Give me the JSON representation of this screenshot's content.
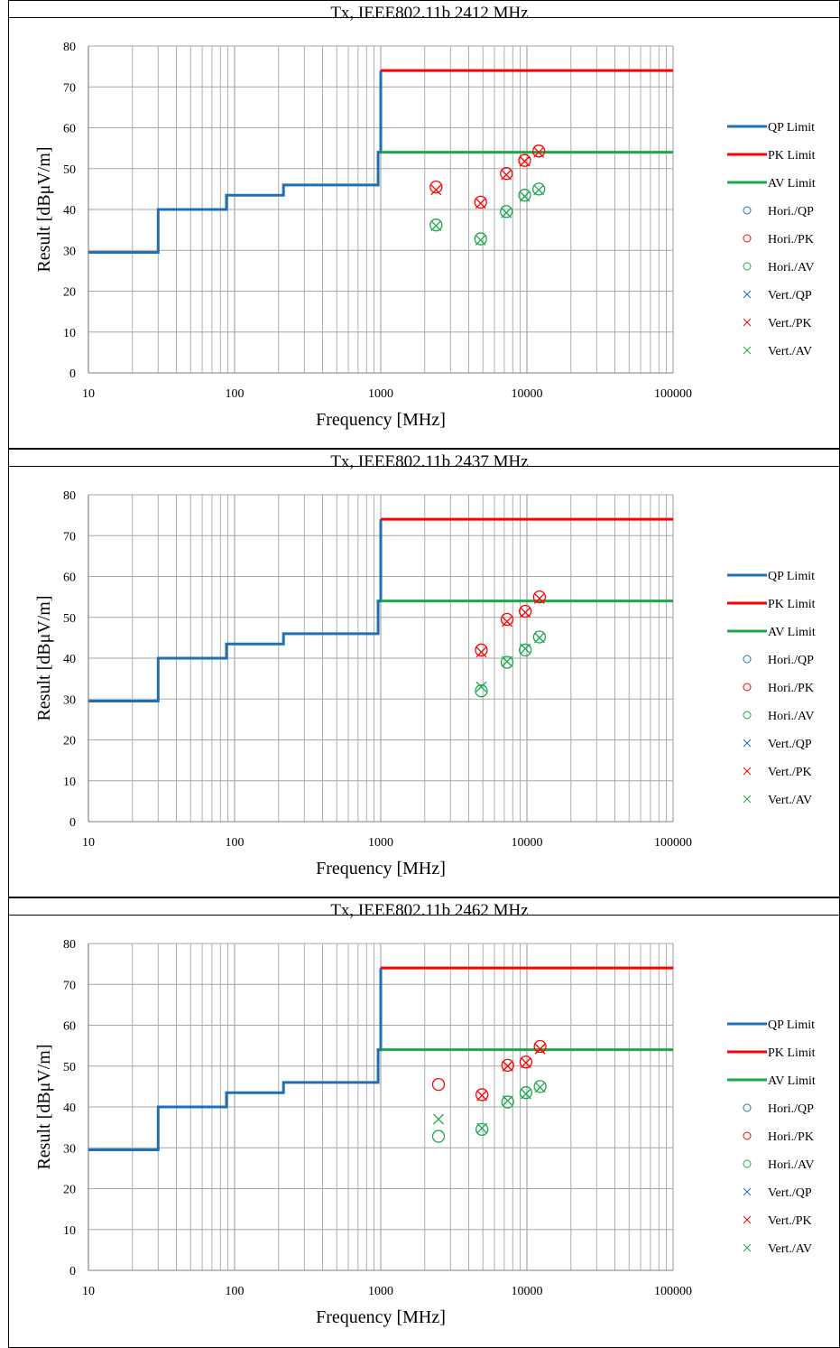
{
  "colors": {
    "qp": "#1f6fb4",
    "pk": "#ff0000",
    "av": "#1aa84a",
    "grid": "#a6a6a6",
    "frame": "#000000"
  },
  "panel_heights": [
    497,
    497,
    499
  ],
  "chart_data": [
    {
      "type": "scatter",
      "title": "Tx, IEEE802.11b 2412 MHz",
      "xlabel": "Frequency [MHz]",
      "ylabel": "Result [dBμV/m]",
      "xscale": "log",
      "xlim": [
        10,
        100000
      ],
      "ylim": [
        0,
        80
      ],
      "xticks": [
        "10",
        "100",
        "1000",
        "10000",
        "100000"
      ],
      "yticks": [
        "0",
        "10",
        "20",
        "30",
        "40",
        "50",
        "60",
        "70",
        "80"
      ],
      "grid": true,
      "legend_position": "right",
      "limit_lines": [
        {
          "name": "QP Limit",
          "color": "#1f6fb4",
          "points": [
            [
              10,
              29.5
            ],
            [
              30,
              29.5
            ],
            [
              30,
              40
            ],
            [
              88,
              40
            ],
            [
              88,
              43.5
            ],
            [
              216,
              43.5
            ],
            [
              216,
              46
            ],
            [
              960,
              46
            ],
            [
              960,
              54
            ],
            [
              1000,
              54
            ],
            [
              1000,
              74
            ]
          ]
        },
        {
          "name": "PK Limit",
          "color": "#ff0000",
          "points": [
            [
              1000,
              74
            ],
            [
              100000,
              74
            ]
          ]
        },
        {
          "name": "AV Limit",
          "color": "#1aa84a",
          "points": [
            [
              1000,
              54
            ],
            [
              100000,
              54
            ]
          ]
        }
      ],
      "series": [
        {
          "name": "Hori./QP",
          "marker": "circle",
          "color": "#1f6fb4",
          "points": []
        },
        {
          "name": "Hori./PK",
          "marker": "circle",
          "color": "#ff0000",
          "points": [
            [
              2390,
              45.5
            ],
            [
              4824,
              41.8
            ],
            [
              7236,
              48.8
            ],
            [
              9648,
              52.0
            ],
            [
              12060,
              54.3
            ]
          ]
        },
        {
          "name": "Hori./AV",
          "marker": "circle",
          "color": "#1aa84a",
          "points": [
            [
              2390,
              36.2
            ],
            [
              4824,
              32.8
            ],
            [
              7236,
              39.5
            ],
            [
              9648,
              43.5
            ],
            [
              12060,
              45.0
            ]
          ]
        },
        {
          "name": "Vert./QP",
          "marker": "x",
          "color": "#1f6fb4",
          "points": []
        },
        {
          "name": "Vert./PK",
          "marker": "x",
          "color": "#ff0000",
          "points": [
            [
              2390,
              44.8
            ],
            [
              4824,
              41.5
            ],
            [
              7236,
              48.5
            ],
            [
              9648,
              51.8
            ],
            [
              12060,
              54.0
            ]
          ]
        },
        {
          "name": "Vert./AV",
          "marker": "x",
          "color": "#1aa84a",
          "points": [
            [
              2390,
              36.0
            ],
            [
              4824,
              32.5
            ],
            [
              7236,
              39.2
            ],
            [
              9648,
              43.2
            ],
            [
              12060,
              44.8
            ]
          ]
        }
      ]
    },
    {
      "type": "scatter",
      "title": "Tx, IEEE802.11b 2437 MHz",
      "xlabel": "Frequency [MHz]",
      "ylabel": "Result [dBμV/m]",
      "xscale": "log",
      "xlim": [
        10,
        100000
      ],
      "ylim": [
        0,
        80
      ],
      "xticks": [
        "10",
        "100",
        "1000",
        "10000",
        "100000"
      ],
      "yticks": [
        "0",
        "10",
        "20",
        "30",
        "40",
        "50",
        "60",
        "70",
        "80"
      ],
      "grid": true,
      "legend_position": "right",
      "limit_lines": [
        {
          "name": "QP Limit",
          "color": "#1f6fb4",
          "points": [
            [
              10,
              29.5
            ],
            [
              30,
              29.5
            ],
            [
              30,
              40
            ],
            [
              88,
              40
            ],
            [
              88,
              43.5
            ],
            [
              216,
              43.5
            ],
            [
              216,
              46
            ],
            [
              960,
              46
            ],
            [
              960,
              54
            ],
            [
              1000,
              54
            ],
            [
              1000,
              74
            ]
          ]
        },
        {
          "name": "PK Limit",
          "color": "#ff0000",
          "points": [
            [
              1000,
              74
            ],
            [
              100000,
              74
            ]
          ]
        },
        {
          "name": "AV Limit",
          "color": "#1aa84a",
          "points": [
            [
              1000,
              54
            ],
            [
              100000,
              54
            ]
          ]
        }
      ],
      "series": [
        {
          "name": "Hori./QP",
          "marker": "circle",
          "color": "#1f6fb4",
          "points": []
        },
        {
          "name": "Hori./PK",
          "marker": "circle",
          "color": "#ff0000",
          "points": [
            [
              4874,
              42.0
            ],
            [
              7311,
              49.5
            ],
            [
              9748,
              51.5
            ],
            [
              12185,
              55.0
            ]
          ]
        },
        {
          "name": "Hori./AV",
          "marker": "circle",
          "color": "#1aa84a",
          "points": [
            [
              4874,
              32.0
            ],
            [
              7311,
              39.0
            ],
            [
              9748,
              42.0
            ],
            [
              12185,
              45.2
            ]
          ]
        },
        {
          "name": "Vert./QP",
          "marker": "x",
          "color": "#1f6fb4",
          "points": []
        },
        {
          "name": "Vert./PK",
          "marker": "x",
          "color": "#ff0000",
          "points": [
            [
              4874,
              41.5
            ],
            [
              7311,
              49.0
            ],
            [
              9748,
              51.2
            ],
            [
              12185,
              54.6
            ]
          ]
        },
        {
          "name": "Vert./AV",
          "marker": "x",
          "color": "#1aa84a",
          "points": [
            [
              4874,
              33.0
            ],
            [
              7311,
              39.2
            ],
            [
              9748,
              42.3
            ],
            [
              12185,
              45.0
            ]
          ]
        }
      ]
    },
    {
      "type": "scatter",
      "title": "Tx, IEEE802.11b 2462 MHz",
      "xlabel": "Frequency [MHz]",
      "ylabel": "Result [dBμV/m]",
      "xscale": "log",
      "xlim": [
        10,
        100000
      ],
      "ylim": [
        0,
        80
      ],
      "xticks": [
        "10",
        "100",
        "1000",
        "10000",
        "100000"
      ],
      "yticks": [
        "0",
        "10",
        "20",
        "30",
        "40",
        "50",
        "60",
        "70",
        "80"
      ],
      "grid": true,
      "legend_position": "right",
      "limit_lines": [
        {
          "name": "QP Limit",
          "color": "#1f6fb4",
          "points": [
            [
              10,
              29.5
            ],
            [
              30,
              29.5
            ],
            [
              30,
              40
            ],
            [
              88,
              40
            ],
            [
              88,
              43.5
            ],
            [
              216,
              43.5
            ],
            [
              216,
              46
            ],
            [
              960,
              46
            ],
            [
              960,
              54
            ],
            [
              1000,
              54
            ],
            [
              1000,
              74
            ]
          ]
        },
        {
          "name": "PK Limit",
          "color": "#ff0000",
          "points": [
            [
              1000,
              74
            ],
            [
              100000,
              74
            ]
          ]
        },
        {
          "name": "AV Limit",
          "color": "#1aa84a",
          "points": [
            [
              1000,
              54
            ],
            [
              100000,
              54
            ]
          ]
        }
      ],
      "series": [
        {
          "name": "Hori./QP",
          "marker": "circle",
          "color": "#1f6fb4",
          "points": []
        },
        {
          "name": "Hori./PK",
          "marker": "circle",
          "color": "#ff0000",
          "points": [
            [
              2484,
              45.5
            ],
            [
              4924,
              43.0
            ],
            [
              7386,
              50.2
            ],
            [
              9848,
              51.0
            ],
            [
              12310,
              54.8
            ]
          ]
        },
        {
          "name": "Hori./AV",
          "marker": "circle",
          "color": "#1aa84a",
          "points": [
            [
              2484,
              32.8
            ],
            [
              4924,
              34.5
            ],
            [
              7386,
              41.2
            ],
            [
              9848,
              43.5
            ],
            [
              12310,
              45.0
            ]
          ]
        },
        {
          "name": "Vert./QP",
          "marker": "x",
          "color": "#1f6fb4",
          "points": []
        },
        {
          "name": "Vert./PK",
          "marker": "x",
          "color": "#ff0000",
          "points": [
            [
              4924,
              42.8
            ],
            [
              7386,
              50.0
            ],
            [
              9848,
              50.8
            ],
            [
              12310,
              54.2
            ]
          ]
        },
        {
          "name": "Vert./AV",
          "marker": "x",
          "color": "#1aa84a",
          "points": [
            [
              2484,
              37.0
            ],
            [
              4924,
              34.8
            ],
            [
              7386,
              41.5
            ],
            [
              9848,
              43.2
            ],
            [
              12310,
              44.8
            ]
          ]
        }
      ]
    }
  ]
}
